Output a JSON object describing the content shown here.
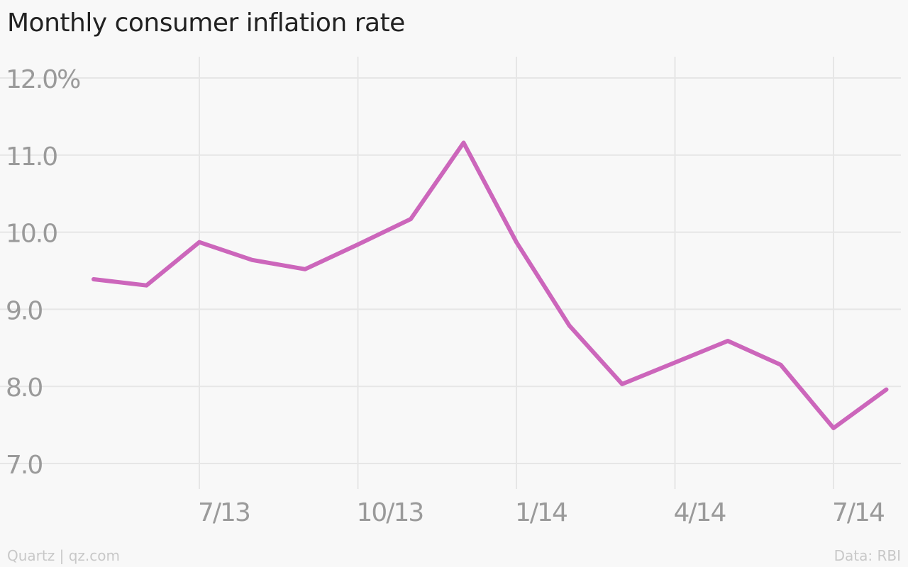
{
  "page": {
    "title": "Monthly consumer inflation rate",
    "footer_left": "Quartz | qz.com",
    "footer_right": "Data: RBI"
  },
  "colors": {
    "background": "#f8f8f8",
    "line": "#cc66bb",
    "grid": "#e6e6e6",
    "tick_text": "#9a9a9a",
    "footer_text": "#c8c8c8",
    "title_text": "#222222"
  },
  "chart_data": {
    "type": "line",
    "title": "Monthly consumer inflation rate",
    "xlabel": "",
    "ylabel": "",
    "x": [
      "2013-05",
      "2013-06",
      "2013-07",
      "2013-08",
      "2013-09",
      "2013-10",
      "2013-11",
      "2013-12",
      "2014-01",
      "2014-02",
      "2014-03",
      "2014-04",
      "2014-05",
      "2014-06",
      "2014-07",
      "2014-08"
    ],
    "series": [
      {
        "values": [
          9.39,
          9.31,
          9.87,
          9.64,
          9.52,
          9.84,
          10.17,
          11.16,
          9.87,
          8.79,
          8.03,
          8.31,
          8.59,
          8.28,
          7.46,
          7.96
        ]
      }
    ],
    "ylim": [
      7.0,
      12.0
    ],
    "y_ticks": [
      7.0,
      8.0,
      9.0,
      10.0,
      11.0,
      12.0
    ],
    "y_tick_labels": [
      "7.0",
      "8.0",
      "9.0",
      "10.0",
      "11.0",
      "12.0%"
    ],
    "x_ticks": [
      "2013-07",
      "2013-10",
      "2014-01",
      "2014-04",
      "2014-07"
    ],
    "x_tick_labels": [
      "7/13",
      "10/13",
      "1/14",
      "4/14",
      "7/14"
    ],
    "grid": true,
    "legend": "none"
  }
}
